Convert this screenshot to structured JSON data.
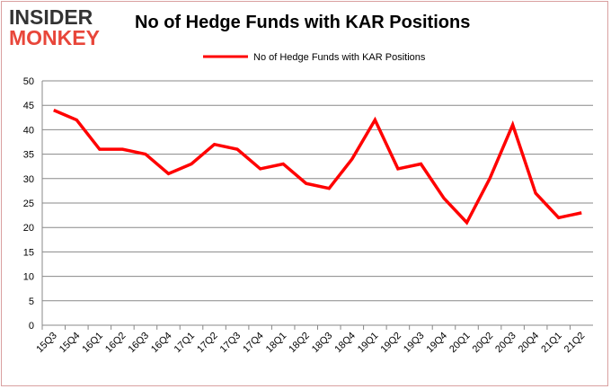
{
  "logo": {
    "line1": "INSIDER",
    "line2": "MONKEY"
  },
  "chart_data": {
    "type": "line",
    "title": "No of Hedge Funds with KAR Positions",
    "xlabel": "",
    "ylabel": "",
    "categories": [
      "15Q3",
      "15Q4",
      "16Q1",
      "16Q2",
      "16Q3",
      "16Q4",
      "17Q1",
      "17Q2",
      "17Q3",
      "17Q4",
      "18Q1",
      "18Q2",
      "18Q3",
      "18Q4",
      "19Q1",
      "19Q2",
      "19Q3",
      "19Q4",
      "20Q1",
      "20Q2",
      "20Q3",
      "20Q4",
      "21Q1",
      "21Q2"
    ],
    "series": [
      {
        "name": "No of Hedge Funds with KAR Positions",
        "color": "#ff0000",
        "values": [
          44,
          42,
          36,
          36,
          35,
          31,
          33,
          37,
          36,
          32,
          33,
          29,
          28,
          34,
          42,
          32,
          33,
          26,
          21,
          30,
          41,
          27,
          22,
          23
        ]
      }
    ],
    "ylim": [
      0,
      50
    ],
    "yticks": [
      0,
      5,
      10,
      15,
      20,
      25,
      30,
      35,
      40,
      45,
      50
    ],
    "grid": true,
    "legend": "top-center"
  }
}
